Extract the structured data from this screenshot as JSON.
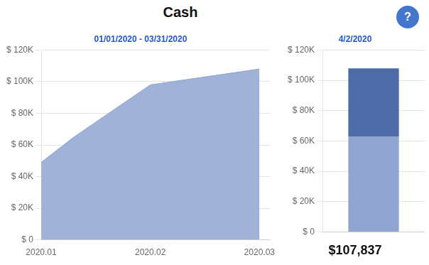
{
  "title": "Cash",
  "annotation": "?",
  "chart_data": [
    {
      "type": "area",
      "subtitle": "01/01/2020 - 03/31/2020",
      "x": [
        2020.01,
        2020.013,
        2020.02,
        2020.025,
        2020.03
      ],
      "values": [
        49000,
        65000,
        98000,
        103000,
        108000
      ],
      "color": "#8fa5d0",
      "xlim": [
        2020.01,
        2020.031
      ],
      "xticks": [
        2020.01,
        2020.02,
        2020.03
      ],
      "ylim": [
        0,
        120000
      ],
      "yticks": [
        {
          "value": 0,
          "label": "$ 0"
        },
        {
          "value": 20000,
          "label": "$ 20K"
        },
        {
          "value": 40000,
          "label": "$ 40K"
        },
        {
          "value": 60000,
          "label": "$ 60K"
        },
        {
          "value": 80000,
          "label": "$ 80K"
        },
        {
          "value": 100000,
          "label": "$ 100K"
        },
        {
          "value": 120000,
          "label": "$ 120K"
        }
      ],
      "grid": true
    },
    {
      "type": "bar",
      "subtitle": "4/2/2020",
      "categories": [
        null
      ],
      "series": [
        {
          "color": "#8fa5d0",
          "values": [
            63000
          ]
        },
        {
          "color": "#4d6ba8",
          "values": [
            44837
          ]
        }
      ],
      "stacked": true,
      "ylim": [
        0,
        120000
      ],
      "yticks": [
        {
          "value": 0,
          "label": "$ 0"
        },
        {
          "value": 20000,
          "label": "$ 20K"
        },
        {
          "value": 40000,
          "label": "$ 40K"
        },
        {
          "value": 60000,
          "label": "$ 60K"
        },
        {
          "value": 80000,
          "label": "$ 80K"
        },
        {
          "value": 100000,
          "label": "$ 100K"
        },
        {
          "value": 120000,
          "label": "$ 120K"
        }
      ],
      "grid": true,
      "tick_labels": "y",
      "annotation": "$107,837"
    }
  ]
}
